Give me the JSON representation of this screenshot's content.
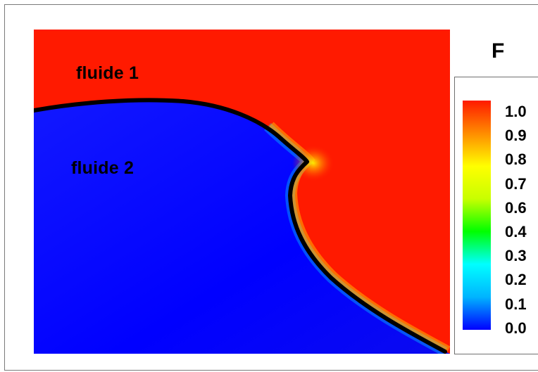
{
  "chart_data": {
    "type": "heatmap",
    "title": "",
    "colorbar": {
      "title": "F",
      "ticks": [
        "1.0",
        "0.9",
        "0.8",
        "0.7",
        "0.6",
        "0.4",
        "0.3",
        "0.2",
        "0.1",
        "0.0"
      ],
      "range": [
        0.0,
        1.0
      ],
      "colors": [
        "#0000ff",
        "#00b4ff",
        "#00ffff",
        "#00ff00",
        "#c8ff00",
        "#ffff00",
        "#ff8c00",
        "#ff1a00"
      ]
    },
    "annotations": [
      "fluide 1",
      "fluide 2"
    ],
    "regions": {
      "fluid1": {
        "label": "fluide 1",
        "F": 1.0,
        "color": "#ff1a00"
      },
      "fluid2": {
        "label": "fluide 2",
        "F": 0.0,
        "color": "#0000ff"
      }
    },
    "interface_color": "#000000"
  }
}
